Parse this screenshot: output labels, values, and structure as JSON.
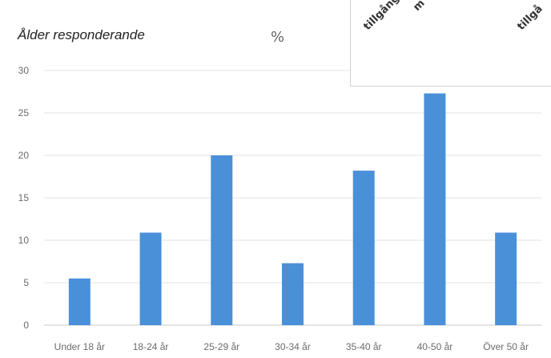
{
  "chart_data": {
    "type": "bar",
    "title": "Ålder responderande",
    "unit_label": "%",
    "categories": [
      "Under 18 år",
      "18-24 år",
      "25-29 år",
      "30-34 år",
      "35-40 år",
      "40-50 år",
      "Över 50 år"
    ],
    "values": [
      5.5,
      10.9,
      20,
      7.3,
      18.2,
      27.3,
      10.9
    ],
    "yticks": [
      0,
      5,
      10,
      15,
      20,
      25,
      30
    ],
    "ylim": [
      0,
      30
    ],
    "grid": true,
    "bar_color": "#4a90d9"
  },
  "overlay": {
    "labels": [
      "tillgång",
      "m",
      "tillgå"
    ]
  }
}
